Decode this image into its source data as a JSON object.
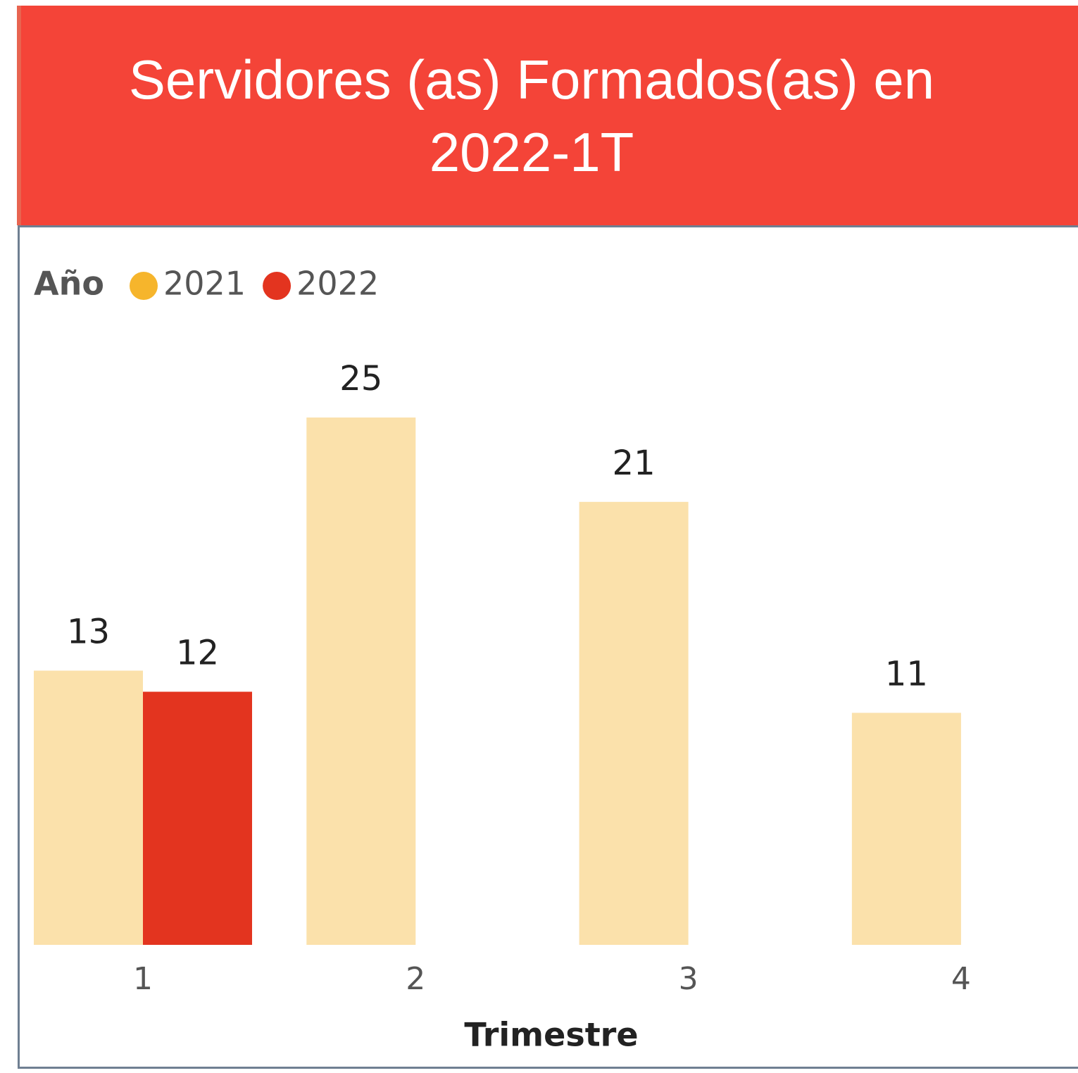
{
  "chart_data": {
    "type": "bar",
    "title": "Servidores (as) Formados(as) en 2022-1T",
    "legend_title": "Año",
    "x_label": "Trimestre",
    "categories": [
      "1",
      "2",
      "3",
      "4"
    ],
    "series": [
      {
        "name": "2021",
        "color": "#F6B52C",
        "values": [
          13,
          25,
          21,
          11
        ]
      },
      {
        "name": "2022",
        "color": "#E3341F",
        "values": [
          12,
          null,
          null,
          null
        ]
      }
    ],
    "ylim": [
      0,
      25
    ]
  }
}
